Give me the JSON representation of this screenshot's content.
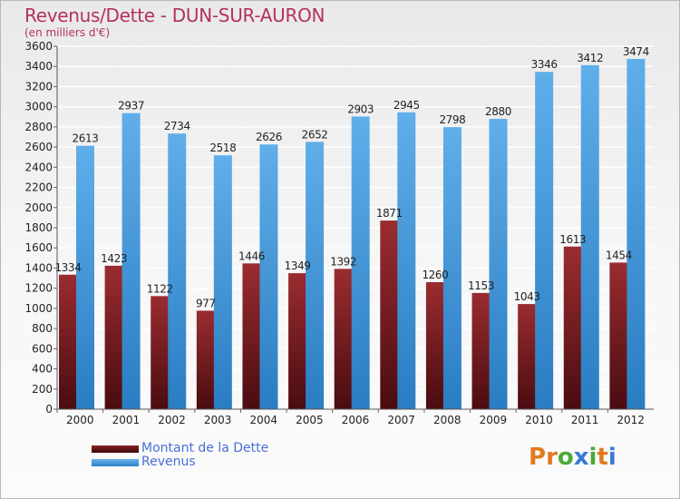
{
  "title": "Revenus/Dette - DUN-SUR-AURON",
  "subtitle": "(en milliers d'€)",
  "logo": {
    "letters": [
      "P",
      "r",
      "o",
      "x",
      "i",
      "t",
      "i"
    ]
  },
  "colors": {
    "debt": "#7a1f22",
    "revenue": "#55a4e3",
    "title": "#b5315a",
    "legend_text": "#4a6fd8",
    "logo": [
      "#e07a1f",
      "#e07a1f",
      "#4caa3a",
      "#3a78d8",
      "#4caa3a",
      "#e07a1f",
      "#3a78d8"
    ]
  },
  "legend": [
    {
      "name": "Montant de la Dette",
      "series": "debt"
    },
    {
      "name": "Revenus",
      "series": "revenue"
    }
  ],
  "chart_data": {
    "type": "bar",
    "title": "Revenus/Dette - DUN-SUR-AURON",
    "ylabel": "(en milliers d'€)",
    "xlabel": "",
    "categories": [
      "2000",
      "2001",
      "2002",
      "2003",
      "2004",
      "2005",
      "2006",
      "2007",
      "2008",
      "2009",
      "2010",
      "2011",
      "2012"
    ],
    "series": [
      {
        "name": "Montant de la Dette",
        "key": "debt",
        "values": [
          1334,
          1423,
          1122,
          977,
          1446,
          1349,
          1392,
          1871,
          1260,
          1153,
          1043,
          1613,
          1454
        ]
      },
      {
        "name": "Revenus",
        "key": "revenue",
        "values": [
          2613,
          2937,
          2734,
          2518,
          2626,
          2652,
          2903,
          2945,
          2798,
          2880,
          3346,
          3412,
          3474
        ]
      }
    ],
    "ylim": [
      0,
      3600
    ],
    "yticks": [
      0,
      200,
      400,
      600,
      800,
      1000,
      1200,
      1400,
      1600,
      1800,
      2000,
      2200,
      2400,
      2600,
      2800,
      3000,
      3200,
      3400,
      3600
    ],
    "grid": true,
    "legend_position": "bottom-left"
  }
}
